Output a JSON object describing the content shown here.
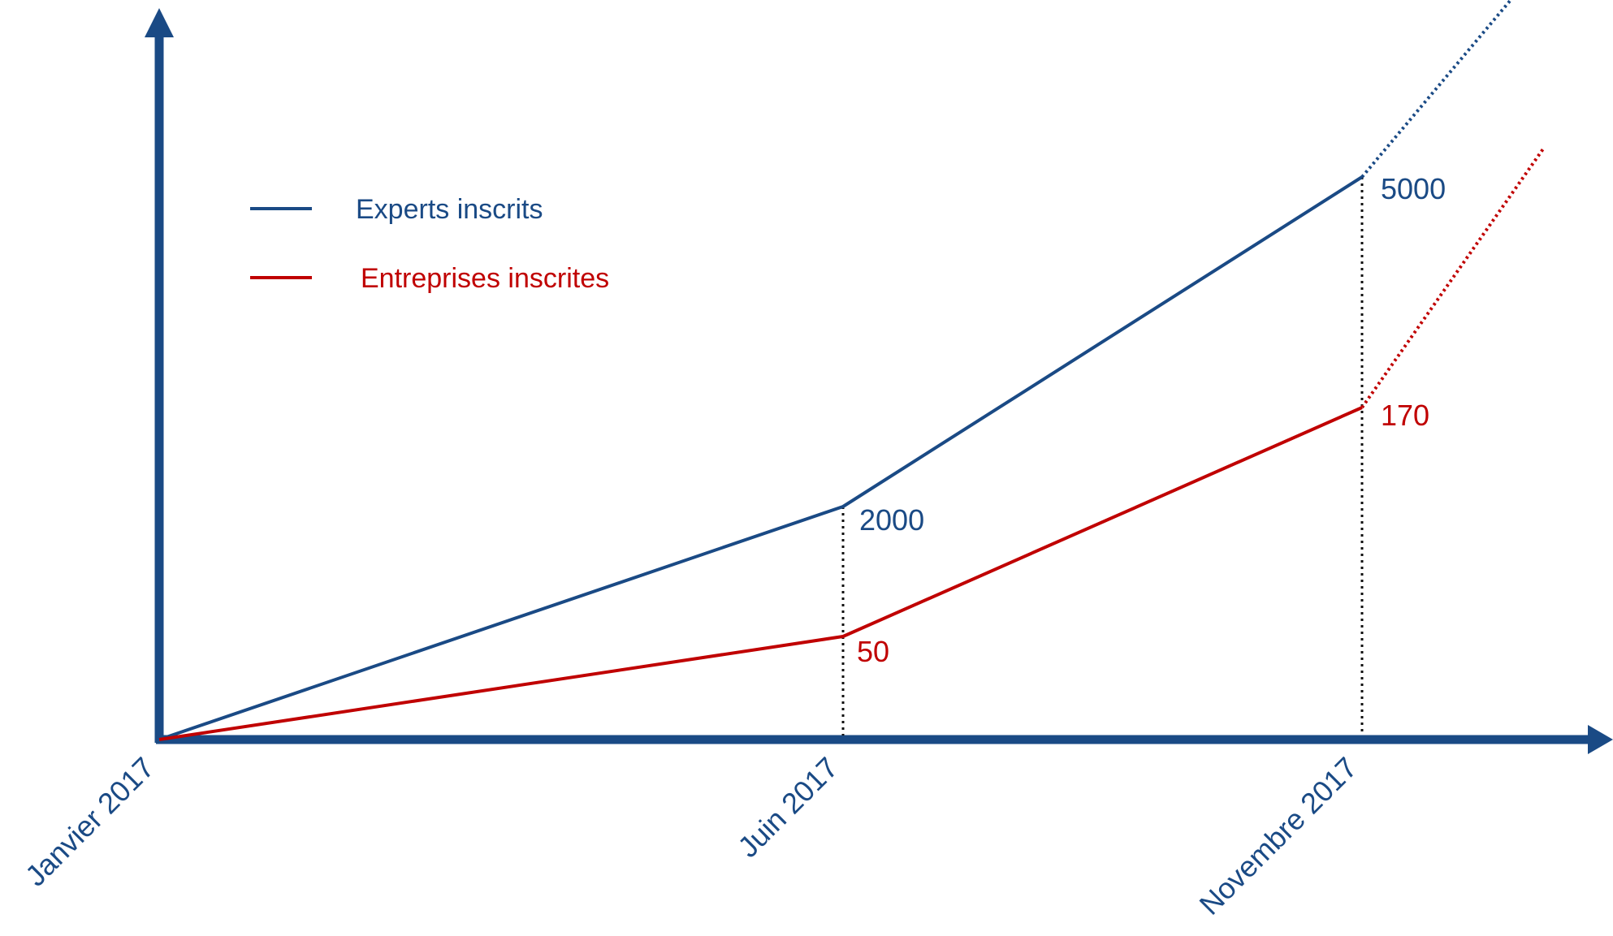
{
  "chart_data": {
    "type": "line",
    "title": "",
    "xlabel": "",
    "ylabel": "",
    "x": [
      "Janvier 2017",
      "Juin 2017",
      "Novembre 2017"
    ],
    "grid": false,
    "legend_position": "top-left",
    "series": [
      {
        "name": "Experts inscrits",
        "values": [
          0,
          2000,
          5000
        ],
        "value_labels": [
          "",
          "2000",
          "5000"
        ],
        "color": "#1a4a85",
        "trend_extension": "dotted"
      },
      {
        "name": "Entreprises inscrites",
        "values": [
          0,
          50,
          170
        ],
        "value_labels": [
          "",
          "50",
          "170"
        ],
        "color": "#c00000",
        "trend_extension": "dotted"
      }
    ],
    "axis_color": "#1a4a85",
    "reference_lines": "dotted vertical lines at Juin 2017 and Novembre 2017"
  }
}
